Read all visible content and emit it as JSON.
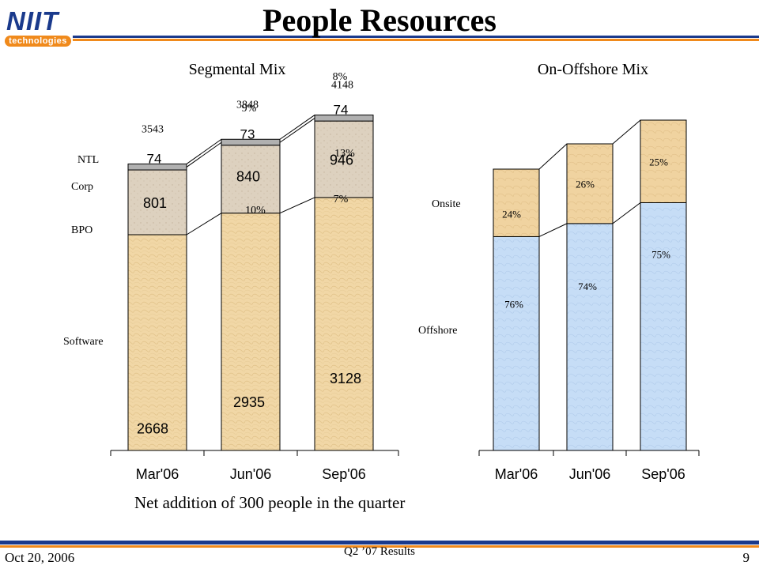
{
  "slide": {
    "logo_text": "NIIT",
    "logo_sub": "technologies",
    "title": "People Resources",
    "note": "Net addition of 300 people in the quarter",
    "footer_date": "Oct 20, 2006",
    "footer_center": "Q2 ’07 Results",
    "page_number": "9"
  },
  "colors": {
    "brand_blue": "#1a3a8c",
    "brand_orange": "#f08a1c",
    "software": "#f1d7a6",
    "bpo": "#ddd1bf",
    "ntl": "#b0b0b0",
    "onsite": "#f0d3a0",
    "offshore": "#c6ddf6"
  },
  "chart_data": [
    {
      "type": "bar",
      "stacked": true,
      "title": "Segmental Mix",
      "categories": [
        "Mar'06",
        "Jun'06",
        "Sep'06"
      ],
      "series": [
        {
          "name": "Software",
          "values": [
            2668,
            2935,
            3128
          ]
        },
        {
          "name": "BPO",
          "values": [
            801,
            840,
            946
          ]
        },
        {
          "name": "NTL",
          "values": [
            74,
            73,
            74
          ]
        }
      ],
      "totals": [
        3543,
        3848,
        4148
      ],
      "legend_labels": [
        "NTL",
        "Corp",
        "BPO",
        "Software"
      ],
      "annotations": [
        {
          "category": "Jun'06",
          "text": "9%"
        },
        {
          "category": "Jun'06",
          "text": "10%"
        },
        {
          "category": "Sep'06",
          "text": "8%"
        },
        {
          "category": "Sep'06",
          "text": "13%"
        },
        {
          "category": "Sep'06",
          "text": "7%"
        }
      ],
      "ylim": [
        0,
        4300
      ]
    },
    {
      "type": "bar",
      "stacked": true,
      "title": "On-Offshore Mix",
      "categories": [
        "Mar'06",
        "Jun'06",
        "Sep'06"
      ],
      "series": [
        {
          "name": "Offshore",
          "values": [
            76,
            74,
            75
          ]
        },
        {
          "name": "Onsite",
          "values": [
            24,
            26,
            25
          ]
        }
      ],
      "value_labels": [
        [
          "76%",
          "74%",
          "75%"
        ],
        [
          "24%",
          "26%",
          "25%"
        ]
      ],
      "ylim": [
        0,
        100
      ]
    }
  ]
}
